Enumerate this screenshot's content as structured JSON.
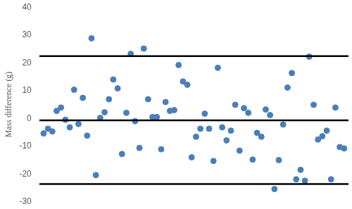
{
  "chart_data": {
    "type": "scatter",
    "y_label": "Mass difference (g)",
    "x": [
      1,
      2,
      3,
      4,
      5,
      6,
      7,
      8,
      9,
      10,
      11,
      12,
      13,
      14,
      15,
      16,
      17,
      18,
      19,
      20,
      21,
      22,
      23,
      24,
      25,
      26,
      27,
      28,
      29,
      30,
      31,
      32,
      33,
      34,
      35,
      36,
      37,
      38,
      39,
      40,
      41,
      42,
      43,
      44,
      45,
      46,
      47,
      48,
      49,
      50,
      51,
      52,
      53,
      54,
      55,
      56,
      57,
      58,
      59,
      60,
      61,
      62,
      63,
      64,
      65,
      66,
      67,
      68,
      69,
      70
    ],
    "values": [
      -5.4,
      -3.7,
      -4.7,
      2.7,
      3.9,
      -0.5,
      -3.2,
      10.3,
      -2.0,
      7.4,
      -6.2,
      28.8,
      -20.4,
      0.2,
      2.2,
      6.9,
      14.0,
      10.8,
      -12.8,
      2.0,
      23.2,
      -1.0,
      -10.6,
      25.1,
      6.9,
      0.5,
      0.5,
      -11.1,
      5.9,
      2.7,
      3.0,
      19.2,
      13.3,
      12.1,
      -14.0,
      -6.6,
      -3.7,
      1.7,
      -3.7,
      -15.3,
      18.2,
      -3.2,
      -7.9,
      -4.4,
      4.9,
      -11.6,
      3.7,
      2.0,
      -14.8,
      -5.2,
      -6.6,
      3.2,
      1.2,
      -25.4,
      -15.0,
      -2.2,
      11.1,
      16.3,
      -21.9,
      -18.5,
      -22.4,
      22.2,
      4.9,
      -7.6,
      -6.4,
      -4.4,
      -21.9,
      3.9,
      -10.3,
      -10.8
    ],
    "color": "#4a7ebb",
    "marker": "circle",
    "reference_lines": [
      22.4,
      -0.7,
      -23.6
    ],
    "reference_color": "#000000",
    "xlim": [
      0,
      71
    ],
    "ylim": [
      -30,
      40
    ],
    "yticks": [
      -30,
      -20,
      -10,
      0,
      10,
      20,
      30,
      40
    ],
    "grid": false,
    "tick_labels": "y"
  }
}
